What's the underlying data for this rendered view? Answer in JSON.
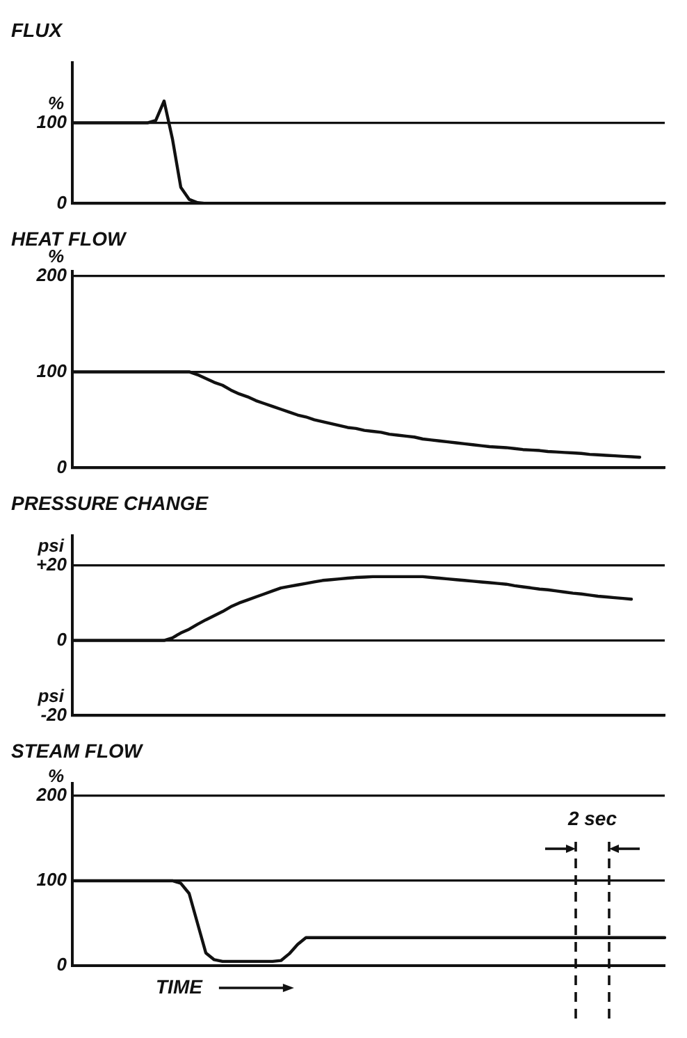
{
  "chart_data": [
    {
      "type": "line",
      "title": "FLUX",
      "ylabel": "%",
      "categories": [
        null,
        null,
        null,
        null,
        null,
        null,
        null,
        null,
        null,
        null,
        null,
        null,
        null,
        null,
        null,
        null,
        null,
        null,
        null,
        null,
        null,
        null,
        null,
        null,
        null,
        null,
        null,
        null,
        null,
        null,
        null,
        null,
        null,
        null,
        null,
        null,
        null,
        null,
        null,
        null,
        null,
        null,
        null,
        null,
        null,
        null,
        null,
        null,
        null,
        null,
        null,
        null,
        null,
        null,
        null,
        null,
        null,
        null,
        null,
        null,
        null,
        null,
        null,
        null,
        null,
        null,
        null,
        null,
        null,
        null,
        null,
        null
      ],
      "series": [
        {
          "color": "#111111",
          "values": [
            100,
            100,
            100,
            100,
            100,
            100,
            100,
            100,
            100,
            100,
            103,
            127,
            80,
            20,
            5,
            1,
            0,
            0,
            0,
            0,
            0,
            0,
            0,
            0,
            0,
            0,
            0,
            0,
            0,
            0,
            0,
            0,
            0,
            0,
            0,
            0,
            0,
            0,
            0,
            0,
            0,
            0,
            0,
            0,
            0,
            0,
            0,
            0,
            0,
            0,
            0,
            0,
            0,
            0,
            0,
            0,
            0,
            0,
            0,
            0,
            0,
            0,
            0,
            0,
            0,
            0,
            0,
            0,
            0,
            0,
            0,
            0
          ]
        }
      ],
      "ylim": [
        0,
        175
      ],
      "yticks": [
        0,
        100
      ],
      "grid": "y",
      "tick_labels": "y"
    },
    {
      "type": "line",
      "title": "HEAT FLOW",
      "ylabel": "%",
      "categories": [
        null,
        null,
        null,
        null,
        null,
        null,
        null,
        null,
        null,
        null,
        null,
        null,
        null,
        null,
        null,
        null,
        null,
        null,
        null,
        null,
        null,
        null,
        null,
        null,
        null,
        null,
        null,
        null,
        null,
        null,
        null,
        null,
        null,
        null,
        null,
        null,
        null,
        null,
        null,
        null,
        null,
        null,
        null,
        null,
        null,
        null,
        null,
        null,
        null,
        null,
        null,
        null,
        null,
        null,
        null,
        null,
        null,
        null,
        null,
        null,
        null,
        null,
        null,
        null,
        null,
        null,
        null,
        null,
        null,
        null,
        null,
        null
      ],
      "series": [
        {
          "color": "#111111",
          "values": [
            100,
            100,
            100,
            100,
            100,
            100,
            100,
            100,
            100,
            100,
            100,
            100,
            100,
            100,
            100,
            97,
            93,
            89,
            86,
            81,
            77,
            74,
            70,
            67,
            64,
            61,
            58,
            55,
            53,
            50,
            48,
            46,
            44,
            42,
            41,
            39,
            38,
            37,
            35,
            34,
            33,
            32,
            30,
            29,
            28,
            27,
            26,
            25,
            24,
            23,
            22,
            21.5,
            21,
            20,
            19,
            18.5,
            18,
            17,
            16.5,
            16,
            15.5,
            15,
            14,
            13.5,
            13,
            12.5,
            12,
            11.5,
            11,
            null,
            null,
            null
          ]
        }
      ],
      "ylim": [
        0,
        205
      ],
      "yticks": [
        0,
        100,
        200
      ],
      "grid": "y",
      "tick_labels": "y"
    },
    {
      "type": "line",
      "title": "PRESSURE CHANGE",
      "ylabel": "psi",
      "categories": [
        null,
        null,
        null,
        null,
        null,
        null,
        null,
        null,
        null,
        null,
        null,
        null,
        null,
        null,
        null,
        null,
        null,
        null,
        null,
        null,
        null,
        null,
        null,
        null,
        null,
        null,
        null,
        null,
        null,
        null,
        null,
        null,
        null,
        null,
        null,
        null,
        null,
        null,
        null,
        null,
        null,
        null,
        null,
        null,
        null,
        null,
        null,
        null,
        null,
        null,
        null,
        null,
        null,
        null,
        null,
        null,
        null,
        null,
        null,
        null,
        null,
        null,
        null,
        null,
        null,
        null,
        null,
        null,
        null,
        null,
        null,
        null
      ],
      "series": [
        {
          "color": "#111111",
          "values": [
            0,
            0,
            0,
            0,
            0,
            0,
            0,
            0,
            0,
            0,
            0,
            0,
            0.7,
            2,
            3,
            4.3,
            5.5,
            6.6,
            7.7,
            9,
            10,
            10.8,
            11.6,
            12.4,
            13.2,
            14,
            14.4,
            14.8,
            15.2,
            15.6,
            16,
            16.2,
            16.4,
            16.6,
            16.8,
            16.9,
            17,
            17,
            17,
            17,
            17,
            17,
            17,
            16.8,
            16.6,
            16.4,
            16.2,
            16,
            15.8,
            15.6,
            15.4,
            15.2,
            15,
            14.6,
            14.3,
            14,
            13.7,
            13.5,
            13.2,
            12.9,
            12.6,
            12.4,
            12.1,
            11.8,
            11.6,
            11.4,
            11.2,
            11,
            null,
            null,
            null,
            null
          ]
        }
      ],
      "ylim": [
        -20,
        28
      ],
      "yticks": [
        -20,
        0,
        {
          "value": 20,
          "label": "+20"
        }
      ],
      "grid": "y",
      "tick_labels": "y"
    },
    {
      "type": "line",
      "title": "STEAM FLOW",
      "ylabel": "%",
      "xlabel": "TIME",
      "categories": [
        null,
        null,
        null,
        null,
        null,
        null,
        null,
        null,
        null,
        null,
        null,
        null,
        null,
        null,
        null,
        null,
        null,
        null,
        null,
        null,
        null,
        null,
        null,
        null,
        null,
        null,
        null,
        null,
        null,
        null,
        null,
        null,
        null,
        null,
        null,
        null,
        null,
        null,
        null,
        null,
        null,
        null,
        null,
        null,
        null,
        null,
        null,
        null,
        null,
        null,
        null,
        null,
        null,
        null,
        null,
        null,
        null,
        null,
        null,
        null,
        null,
        null,
        null,
        null,
        null,
        null,
        null,
        null,
        null,
        null,
        null,
        null
      ],
      "series": [
        {
          "color": "#111111",
          "values": [
            100,
            100,
            100,
            100,
            100,
            100,
            100,
            100,
            100,
            100,
            100,
            100,
            100,
            97,
            85,
            50,
            15,
            7,
            5,
            5,
            5,
            5,
            5,
            5,
            5,
            6,
            14,
            25,
            33,
            33,
            33,
            33,
            33,
            33,
            33,
            33,
            33,
            33,
            33,
            33,
            33,
            33,
            33,
            33,
            33,
            33,
            33,
            33,
            33,
            33,
            33,
            33,
            33,
            33,
            33,
            33,
            33,
            33,
            33,
            33,
            33,
            33,
            33,
            33,
            33,
            33,
            33,
            33,
            33,
            33,
            33,
            33
          ]
        }
      ],
      "ylim": [
        0,
        215
      ],
      "yticks": [
        0,
        100,
        200
      ],
      "grid": "y",
      "tick_labels": "y",
      "annotations": [
        "2 sec"
      ]
    }
  ]
}
